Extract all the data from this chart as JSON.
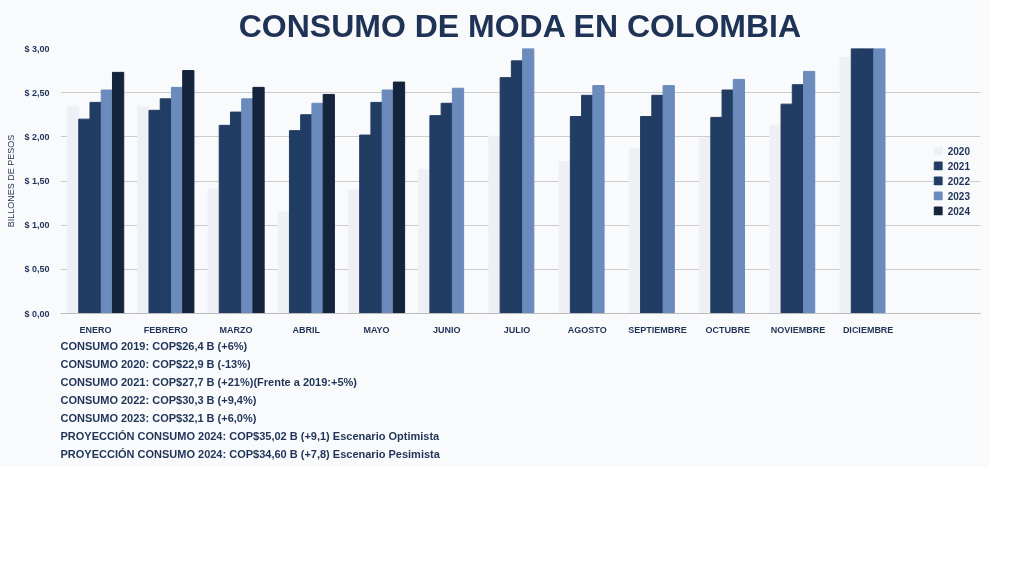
{
  "chart_data": {
    "type": "bar",
    "title": "CONSUMO DE MODA EN COLOMBIA",
    "ylabel": "BILLONES DE PESOS",
    "categories": [
      "ENERO",
      "FEBRERO",
      "MARZO",
      "ABRIL",
      "MAYO",
      "JUNIO",
      "JULIO",
      "AGOSTO",
      "SEPTIEMBRE",
      "OCTUBRE",
      "NOVIEMBRE",
      "DICIEMBRE"
    ],
    "series": [
      {
        "name": "2020",
        "color": "#eef0f6",
        "values": [
          2.34,
          2.34,
          1.41,
          1.15,
          1.4,
          1.63,
          2.01,
          1.72,
          1.87,
          1.99,
          2.13,
          2.9
        ]
      },
      {
        "name": "2021",
        "color": "#213d63",
        "values": [
          2.2,
          2.3,
          2.13,
          2.07,
          2.02,
          2.24,
          2.67,
          2.23,
          2.23,
          2.22,
          2.37,
          3.0
        ]
      },
      {
        "name": "2022",
        "color": "#213d63",
        "values": [
          2.39,
          2.43,
          2.28,
          2.25,
          2.39,
          2.38,
          2.86,
          2.47,
          2.47,
          2.53,
          2.59,
          3.0
        ]
      },
      {
        "name": "2023",
        "color": "#6a8bbb",
        "values": [
          2.53,
          2.56,
          2.43,
          2.38,
          2.53,
          2.55,
          3.0,
          2.58,
          2.58,
          2.65,
          2.74,
          3.0
        ]
      },
      {
        "name": "2024",
        "color": "#14243c",
        "values": [
          2.73,
          2.75,
          2.56,
          2.48,
          2.62,
          null,
          null,
          null,
          null,
          null,
          null,
          null
        ]
      }
    ],
    "ylim": [
      0,
      3
    ],
    "yticks": [
      {
        "value": 0,
        "label": "$ 0,00"
      },
      {
        "value": 0.5,
        "label": "$ 0,50"
      },
      {
        "value": 1,
        "label": "$ 1,00"
      },
      {
        "value": 1.5,
        "label": "$ 1,50"
      },
      {
        "value": 2,
        "label": "$ 2,00"
      },
      {
        "value": 2.5,
        "label": "$ 2,50"
      },
      {
        "value": 3,
        "label": "$ 3,00"
      }
    ],
    "grid": "y",
    "legend": "right",
    "annotations": [
      "CONSUMO 2019: COP$26,4 B (+6%)",
      "CONSUMO 2020: COP$22,9 B (-13%)",
      "CONSUMO 2021: COP$27,7 B (+21%)(Frente a 2019:+5%)",
      "CONSUMO 2022: COP$30,3 B (+9,4%)",
      "CONSUMO 2023: COP$32,1 B (+6,0%)",
      "PROYECCIÓN CONSUMO 2024: COP$35,02 B (+9,1) Escenario Optimista",
      "PROYECCIÓN CONSUMO 2024: COP$34,60 B (+7,8) Escenario Pesimista"
    ]
  }
}
